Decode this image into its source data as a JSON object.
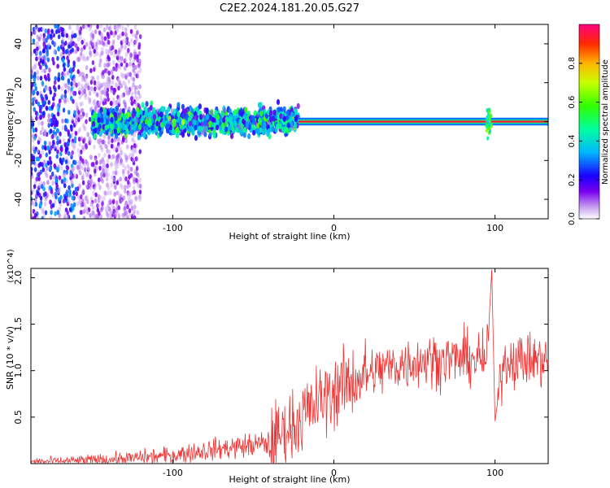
{
  "title": "C2E2.2024.181.20.05.G27",
  "chart_data": [
    {
      "type": "heatmap",
      "xlabel": "Height of straight line (km)",
      "ylabel": "Frequency (Hz)",
      "xlim": [
        -188,
        133
      ],
      "ylim": [
        -50,
        50
      ],
      "xticks": [
        -100,
        0,
        100
      ],
      "xtick_labels": [
        "-100",
        "0",
        "100"
      ],
      "yticks": [
        -40,
        -20,
        0,
        20,
        40
      ],
      "ytick_labels": [
        "-40",
        "-20",
        "0",
        "20",
        "40"
      ],
      "colorbar": {
        "label": "Normalized spectral amplitude",
        "range": [
          0,
          1
        ],
        "ticks": [
          0.0,
          0.2,
          0.4,
          0.6,
          0.8
        ],
        "tick_labels": [
          "0.0",
          "0.2",
          "0.4",
          "0.6",
          "0.8"
        ]
      },
      "features": [
        {
          "x_range": [
            -188,
            -120
          ],
          "freq_range": [
            -50,
            50
          ],
          "amplitude": 0.15
        },
        {
          "x_range": [
            -150,
            -22
          ],
          "freq_range": [
            -5,
            6
          ],
          "amplitude": 0.35
        },
        {
          "x_range": [
            -22,
            133
          ],
          "freq": 0,
          "amplitude": 0.95
        },
        {
          "x": 96,
          "freq": 0,
          "amplitude": 0.6
        }
      ]
    },
    {
      "type": "line",
      "xlabel": "Height of straight line (km)",
      "ylabel": "SNR (10 * v/v)",
      "y_multiplier": "(x10^4)",
      "xlim": [
        -188,
        133
      ],
      "ylim": [
        0,
        2.1
      ],
      "xticks": [
        -100,
        0,
        100
      ],
      "xtick_labels": [
        "-100",
        "0",
        "100"
      ],
      "yticks": [
        0.5,
        1.0,
        1.5,
        2.0
      ],
      "ytick_labels": [
        "0.5",
        "1.0",
        "1.5",
        "2.0"
      ],
      "series": [
        {
          "color": "#ee3333",
          "x": [
            -188,
            -160,
            -130,
            -100,
            -80,
            -60,
            -40,
            -30,
            -20,
            -10,
            0,
            10,
            20,
            30,
            40,
            50,
            60,
            70,
            80,
            90,
            95,
            98,
            100,
            105,
            110,
            120,
            133
          ],
          "y": [
            0.02,
            0.03,
            0.05,
            0.09,
            0.14,
            0.18,
            0.22,
            0.35,
            0.5,
            0.65,
            0.78,
            0.88,
            0.95,
            1.02,
            1.06,
            1.1,
            1.12,
            1.12,
            1.13,
            1.12,
            1.1,
            2.1,
            0.45,
            1.1,
            1.12,
            1.12,
            1.1
          ]
        }
      ]
    }
  ]
}
